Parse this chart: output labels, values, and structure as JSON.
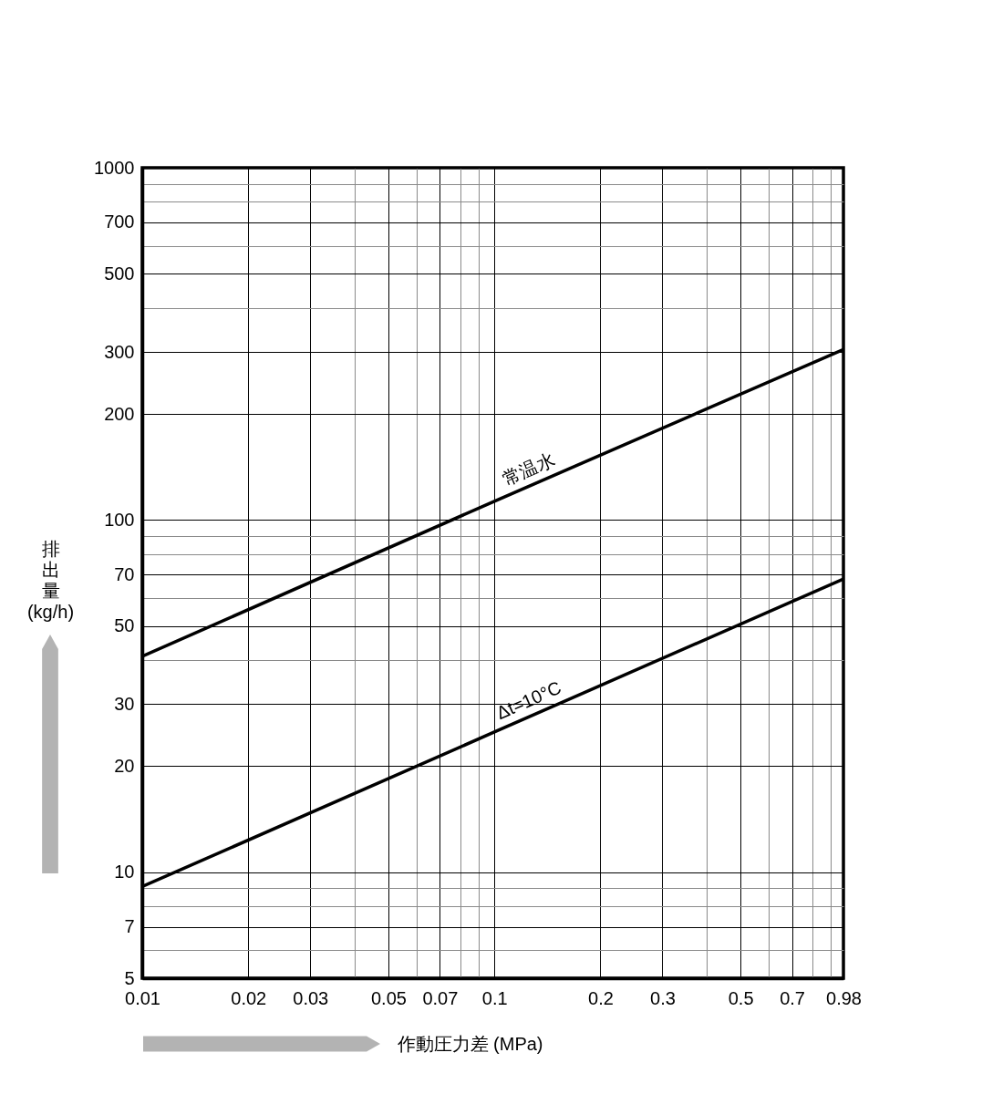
{
  "chart_data": {
    "type": "line",
    "xlabel": "作動圧力差 (MPa)",
    "ylabel": "排出量 (kg/h)",
    "x": [
      0.01,
      0.1,
      0.98
    ],
    "series": [
      {
        "name": "常温水",
        "color": "#000000",
        "values": [
          41,
          113,
          305
        ]
      },
      {
        "name": "Δt=10°C",
        "color": "#000000",
        "values": [
          9.1,
          25,
          68
        ]
      }
    ],
    "xlim": [
      0.01,
      0.98
    ],
    "ylim": [
      5,
      1000
    ],
    "xticks": [
      0.01,
      0.02,
      0.03,
      {
        "value": 0.04,
        "label": null
      },
      0.05,
      {
        "value": 0.06,
        "label": null
      },
      0.07,
      {
        "value": 0.08,
        "label": null
      },
      {
        "value": 0.09,
        "label": null
      },
      0.1,
      0.2,
      0.3,
      {
        "value": 0.4,
        "label": null
      },
      0.5,
      {
        "value": 0.6,
        "label": null
      },
      0.7,
      {
        "value": 0.8,
        "label": null
      },
      {
        "value": 0.9,
        "label": null
      },
      0.98
    ],
    "yticks": [
      5,
      {
        "value": 6,
        "label": null
      },
      7,
      {
        "value": 8,
        "label": null
      },
      {
        "value": 9,
        "label": null
      },
      10,
      20,
      30,
      {
        "value": 40,
        "label": null
      },
      50,
      {
        "value": 60,
        "label": null
      },
      70,
      {
        "value": 80,
        "label": null
      },
      {
        "value": 90,
        "label": null
      },
      100,
      200,
      300,
      {
        "value": 400,
        "label": null
      },
      500,
      {
        "value": 600,
        "label": null
      },
      700,
      {
        "value": 800,
        "label": null
      },
      {
        "value": 900,
        "label": null
      },
      1000
    ],
    "log": "xy",
    "grid": true,
    "legend": false,
    "marker": "none",
    "line_style": "solid"
  }
}
